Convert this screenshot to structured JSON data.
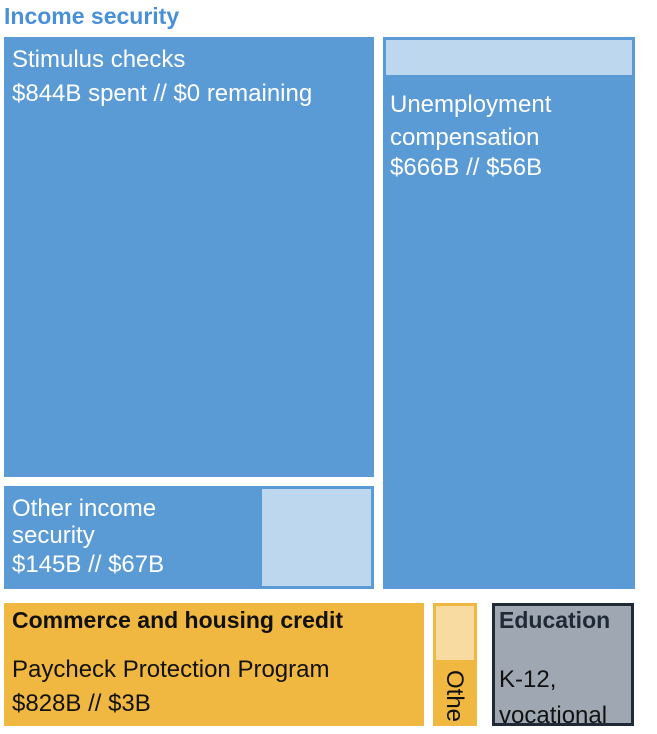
{
  "chart_data": {
    "type": "treemap",
    "categories": [
      {
        "name": "Income security",
        "color": "#5b9bd5",
        "items": [
          {
            "name": "Stimulus checks",
            "label": "$844B spent // $0 remaining",
            "spent": 844,
            "remaining": 0
          },
          {
            "name": "Unemployment compensation",
            "label": "$666B // $56B",
            "spent": 666,
            "remaining": 56
          },
          {
            "name": "Other income security",
            "label": "$145B // $67B",
            "spent": 145,
            "remaining": 67
          }
        ]
      },
      {
        "name": "Commerce and housing credit",
        "color": "#f0b840",
        "items": [
          {
            "name": "Paycheck Protection Program",
            "label": "$828B // $3B",
            "spent": 828,
            "remaining": 3
          },
          {
            "name": "Othe"
          }
        ]
      },
      {
        "name": "Education",
        "color": "#9ea7b2",
        "items": [
          {
            "name": "K-12, vocational"
          }
        ]
      }
    ]
  }
}
